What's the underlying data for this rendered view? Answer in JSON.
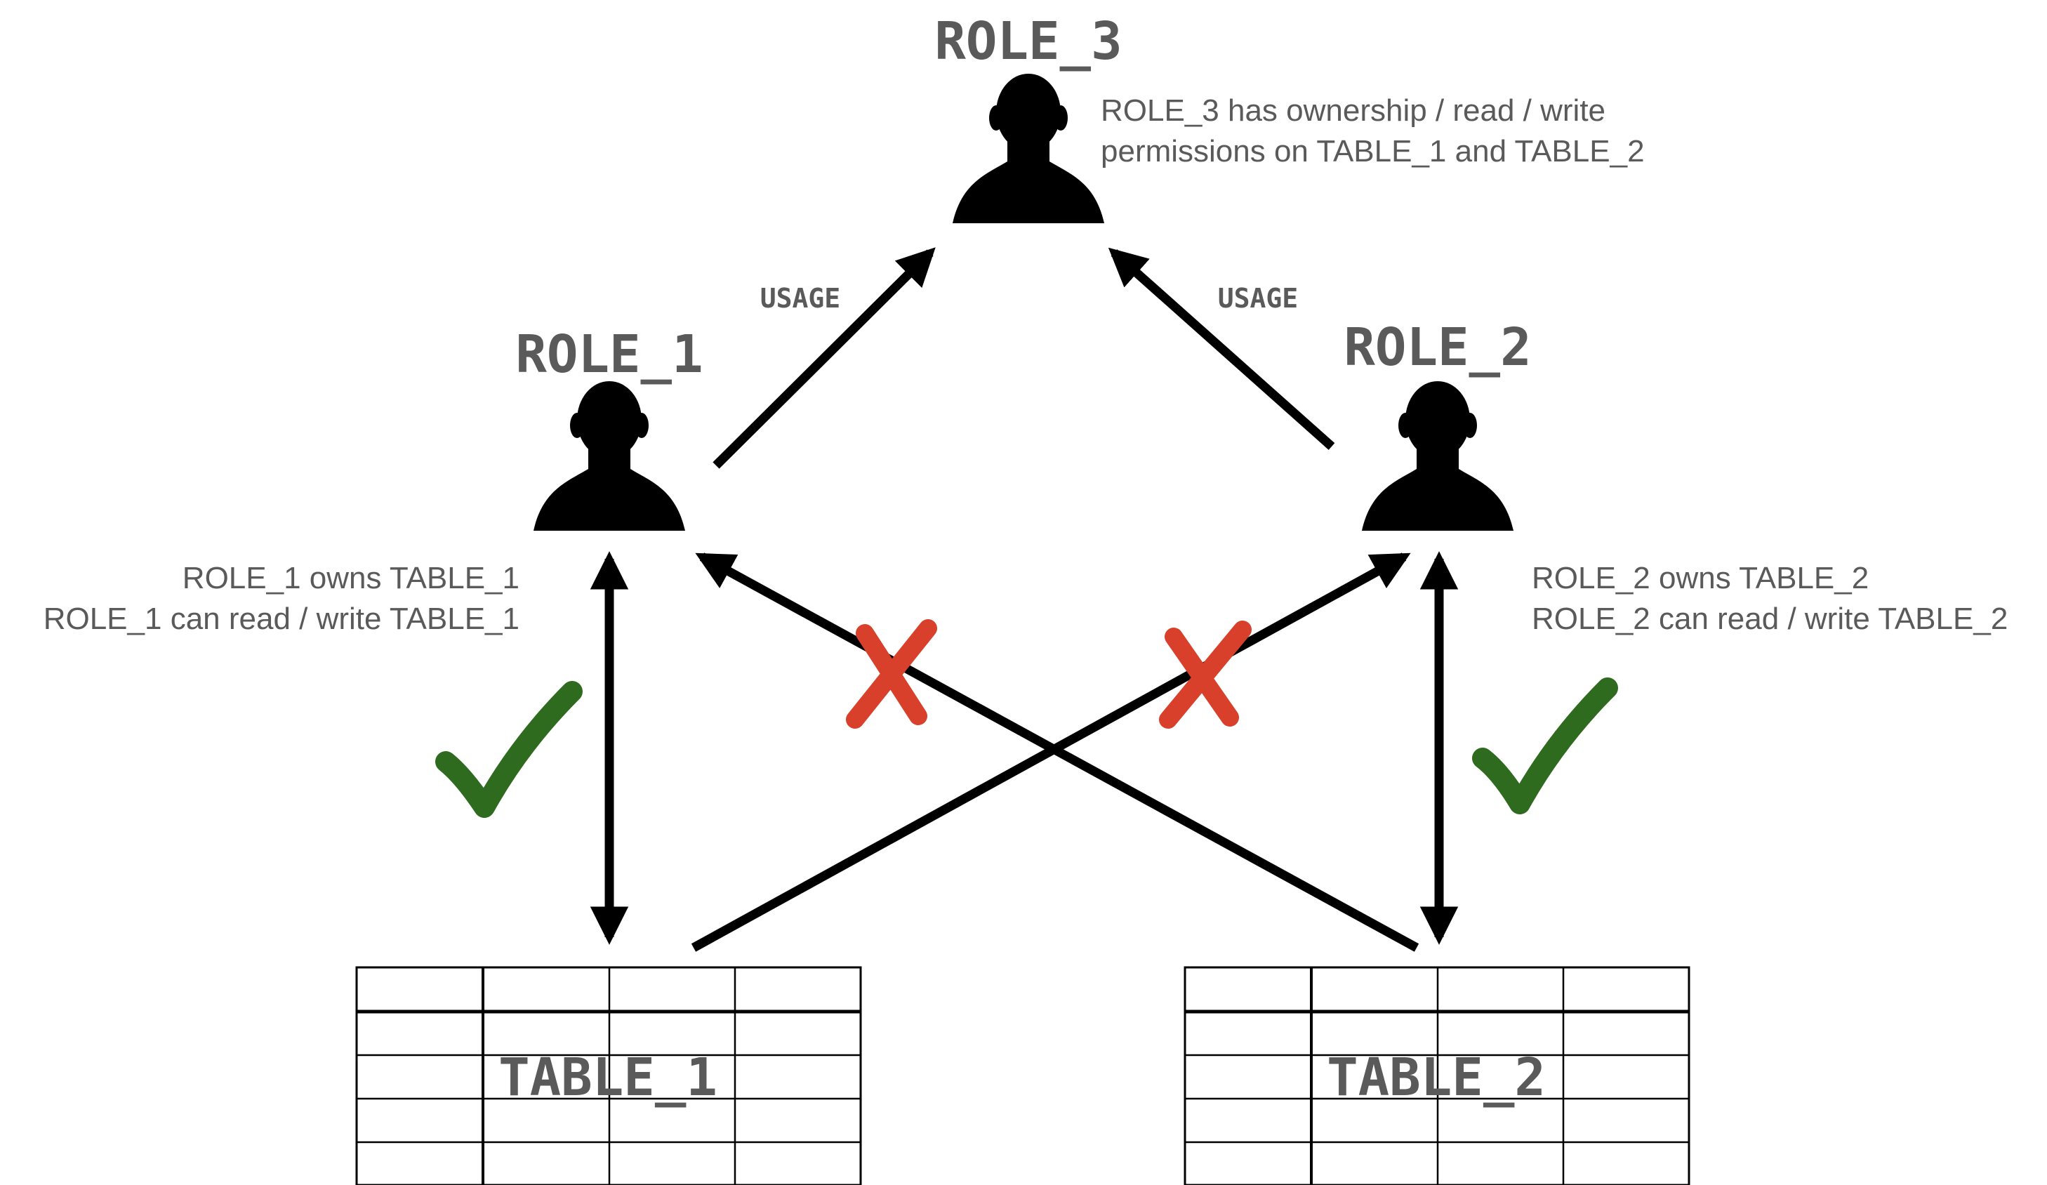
{
  "diagram": {
    "roles": [
      {
        "id": "role_3",
        "label": "ROLE_3"
      },
      {
        "id": "role_1",
        "label": "ROLE_1"
      },
      {
        "id": "role_2",
        "label": "ROLE_2"
      }
    ],
    "tables": [
      {
        "id": "table_1",
        "label": "TABLE_1"
      },
      {
        "id": "table_2",
        "label": "TABLE_2"
      }
    ],
    "notes": {
      "role_3": [
        "ROLE_3 has ownership / read / write",
        "permissions on TABLE_1 and TABLE_2"
      ],
      "role_1": [
        "ROLE_1 owns TABLE_1",
        "ROLE_1 can read / write TABLE_1"
      ],
      "role_2": [
        "ROLE_2 owns TABLE_2",
        "ROLE_2 can read / write TABLE_2"
      ]
    },
    "edges": [
      {
        "from": "role_1",
        "to": "role_3",
        "label": "USAGE",
        "status": "granted"
      },
      {
        "from": "role_2",
        "to": "role_3",
        "label": "USAGE",
        "status": "granted"
      },
      {
        "from": "role_1",
        "to": "table_1",
        "label": "",
        "status": "allowed"
      },
      {
        "from": "role_2",
        "to": "table_2",
        "label": "",
        "status": "allowed"
      },
      {
        "from": "table_2",
        "to": "role_1",
        "label": "",
        "status": "denied"
      },
      {
        "from": "table_1",
        "to": "role_2",
        "label": "",
        "status": "denied"
      }
    ],
    "icons": {
      "person": "person-silhouette-icon",
      "allowed": "green-check-icon",
      "denied": "red-x-icon"
    },
    "colors": {
      "text": "#5a5a5a",
      "line": "#000000",
      "check": "#2e6b1e",
      "cross": "#d9402b"
    }
  }
}
